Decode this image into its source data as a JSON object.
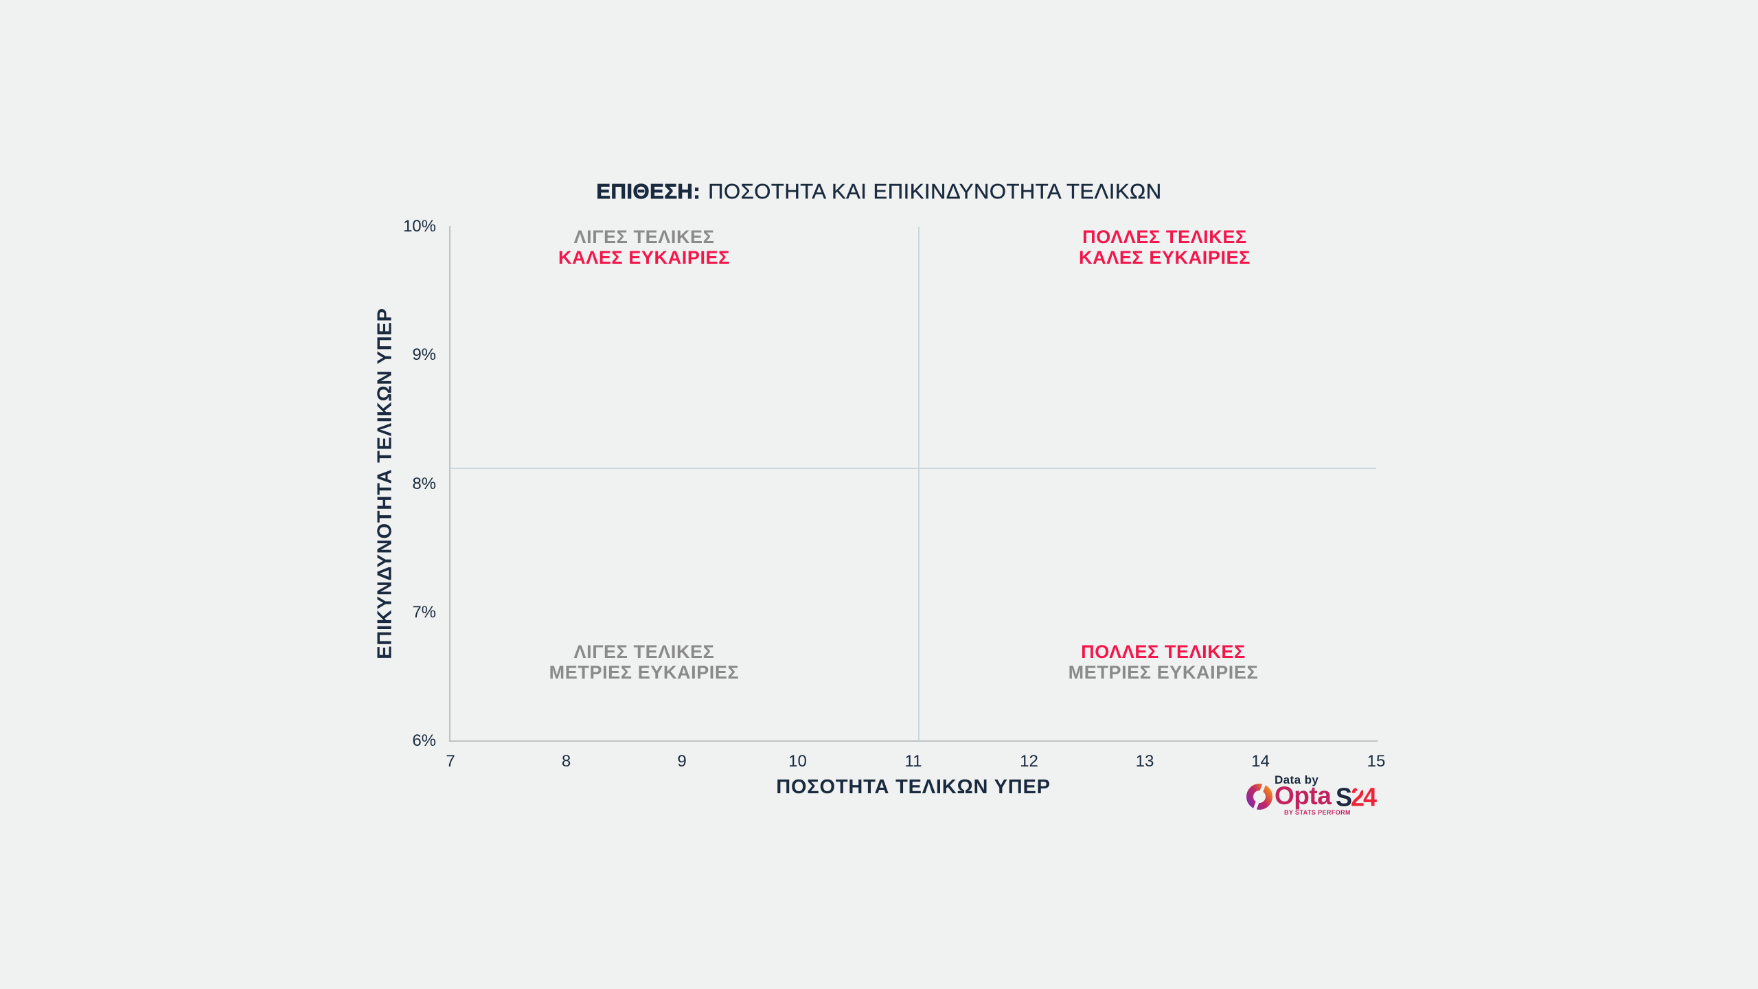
{
  "theme": {
    "background": "#f0f1f1",
    "navy": "#192a3e",
    "gray": "#8a8a8a",
    "red": "#f3164b",
    "axis_line": "#bfc3c3",
    "crosshair_line": "#cbd9dc",
    "opta_magenta": "#c2235f",
    "s24_red": "#ee2438"
  },
  "title": {
    "lead": "ΕΠΙΘΕΣΗ:",
    "rest": "ΠΟΣΟΤΗΤΑ ΚΑΙ ΕΠΙΚΙΝΔΥΝΟΤΗΤΑ ΤΕΛΙΚΩΝ"
  },
  "axes": {
    "x_title": "ΠΟΣΟΤΗΤΑ ΤΕΛΙΚΩΝ ΥΠΕΡ",
    "y_title": "ΕΠΙΚΥΝΔΥΝΟΤΗΤΑ ΤΕΛΙΚΩΝ ΥΠΕΡ"
  },
  "quadrants": {
    "top_left": {
      "line1": "ΛΙΓΕΣ ΤΕΛΙΚΕΣ",
      "line2": "ΚΑΛΕΣ ΕΥΚΑΙΡΙΕΣ",
      "line1_color": "gray",
      "line2_color": "red"
    },
    "top_right": {
      "line1": "ΠΟΛΛΕΣ ΤΕΛΙΚΕΣ",
      "line2": "ΚΑΛΕΣ ΕΥΚΑΙΡΙΕΣ",
      "line1_color": "red",
      "line2_color": "red"
    },
    "bottom_left": {
      "line1": "ΛΙΓΕΣ ΤΕΛΙΚΕΣ",
      "line2": "ΜΕΤΡΙΕΣ ΕΥΚΑΙΡΙΕΣ",
      "line1_color": "gray",
      "line2_color": "gray"
    },
    "bottom_right": {
      "line1": "ΠΟΛΛΕΣ ΤΕΛΙΚΕΣ",
      "line2": "ΜΕΤΡΙΕΣ ΕΥΚΑΙΡΙΕΣ",
      "line1_color": "red",
      "line2_color": "gray"
    }
  },
  "branding": {
    "data_by": "Data by",
    "opta": "Opta",
    "opta_sub": "BY STATS PERFORM",
    "s24_s": "S",
    "s24_24": "24"
  },
  "chart_data": {
    "type": "scatter",
    "title": "ΕΠΙΘΕΣΗ: ΠΟΣΟΤΗΤΑ ΚΑΙ ΕΠΙΚΙΝΔΥΝΟΤΗΤΑ ΤΕΛΙΚΩΝ",
    "xlabel": "ΠΟΣΟΤΗΤΑ ΤΕΛΙΚΩΝ ΥΠΕΡ",
    "ylabel": "ΕΠΙΚΥΝΔΥΝΟΤΗΤΑ ΤΕΛΙΚΩΝ ΥΠΕΡ",
    "xlim": [
      7,
      15
    ],
    "ylim_percent": [
      6,
      10
    ],
    "x_ticks": [
      "7",
      "8",
      "9",
      "10",
      "11",
      "12",
      "13",
      "14",
      "15"
    ],
    "y_ticks": [
      "10%",
      "9%",
      "8%",
      "7%",
      "6%"
    ],
    "points": [],
    "divider_x": 11.05,
    "divider_y_percent": 8.12,
    "grid": false,
    "legend": false,
    "quadrant_labels": [
      {
        "position": "top-left",
        "lines": [
          "ΛΙΓΕΣ ΤΕΛΙΚΕΣ",
          "ΚΑΛΕΣ ΕΥΚΑΙΡΙΕΣ"
        ]
      },
      {
        "position": "top-right",
        "lines": [
          "ΠΟΛΛΕΣ ΤΕΛΙΚΕΣ",
          "ΚΑΛΕΣ ΕΥΚΑΙΡΙΕΣ"
        ]
      },
      {
        "position": "bottom-left",
        "lines": [
          "ΛΙΓΕΣ ΤΕΛΙΚΕΣ",
          "ΜΕΤΡΙΕΣ ΕΥΚΑΙΡΙΕΣ"
        ]
      },
      {
        "position": "bottom-right",
        "lines": [
          "ΠΟΛΛΕΣ ΤΕΛΙΚΕΣ",
          "ΜΕΤΡΙΕΣ ΕΥΚΑΙΡΙΕΣ"
        ]
      }
    ]
  }
}
